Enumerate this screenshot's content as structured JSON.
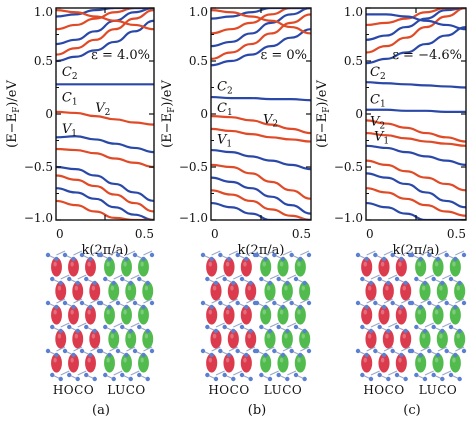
{
  "chart_data": [
    {
      "type": "line",
      "panel": "(a)",
      "xlabel": "k(2π/a)",
      "ylabel": "(E−E_F)/eV",
      "xlim": [
        0,
        0.5
      ],
      "ylim": [
        -1.0,
        1.0
      ],
      "xticks": [
        "0",
        "0.5"
      ],
      "yticks": [
        "1.0",
        "0.5",
        "0",
        "−0.5",
        "−1.0"
      ],
      "strain_label": "ε = 4.0%",
      "band_labels": [
        {
          "text": "C",
          "sub": "2",
          "x": 0.03,
          "y": 0.36
        },
        {
          "text": "C",
          "sub": "1",
          "x": 0.03,
          "y": 0.12
        },
        {
          "text": "V",
          "sub": "2",
          "x": 0.2,
          "y": 0.02
        },
        {
          "text": "V",
          "sub": "1",
          "x": 0.03,
          "y": -0.18
        }
      ],
      "series": [
        {
          "color": "#2a48a8",
          "x": [
            0,
            0.1,
            0.2,
            0.3,
            0.4,
            0.5
          ],
          "y": [
            0.28,
            0.28,
            0.28,
            0.28,
            0.28,
            0.28
          ]
        },
        {
          "color": "#e04a26",
          "x": [
            0,
            0.1,
            0.2,
            0.3,
            0.4,
            0.5
          ],
          "y": [
            0.02,
            0.01,
            -0.02,
            -0.05,
            -0.08,
            -0.1
          ]
        },
        {
          "color": "#2a48a8",
          "x": [
            0,
            0.1,
            0.2,
            0.3,
            0.4,
            0.5
          ],
          "y": [
            -0.22,
            -0.21,
            -0.24,
            -0.28,
            -0.32,
            -0.36
          ]
        },
        {
          "color": "#e04a26",
          "x": [
            0,
            0.1,
            0.2,
            0.3,
            0.4,
            0.5
          ],
          "y": [
            -0.33,
            -0.34,
            -0.37,
            -0.42,
            -0.46,
            -0.5
          ]
        },
        {
          "color": "#2a48a8",
          "x": [
            0,
            0.1,
            0.2,
            0.3,
            0.4,
            0.5
          ],
          "y": [
            -0.5,
            -0.52,
            -0.58,
            -0.66,
            -0.74,
            -0.82
          ]
        },
        {
          "color": "#e04a26",
          "x": [
            0,
            0.1,
            0.2,
            0.3,
            0.4,
            0.5
          ],
          "y": [
            -0.58,
            -0.62,
            -0.68,
            -0.76,
            -0.84,
            -0.92
          ]
        },
        {
          "color": "#2a48a8",
          "x": [
            0,
            0.1,
            0.2,
            0.3,
            0.4,
            0.5
          ],
          "y": [
            -0.7,
            -0.74,
            -0.8,
            -0.88,
            -0.95,
            -1.0
          ]
        },
        {
          "color": "#e04a26",
          "x": [
            0,
            0.1,
            0.2,
            0.3,
            0.4,
            0.5
          ],
          "y": [
            -0.82,
            -0.86,
            -0.92,
            -0.98,
            -1.0,
            -1.0
          ]
        },
        {
          "color": "#2a48a8",
          "x": [
            0,
            0.1,
            0.2,
            0.3,
            0.4,
            0.5
          ],
          "y": [
            0.5,
            0.54,
            0.6,
            0.68,
            0.78,
            0.88
          ]
        },
        {
          "color": "#e04a26",
          "x": [
            0,
            0.1,
            0.2,
            0.3,
            0.4,
            0.5
          ],
          "y": [
            0.56,
            0.62,
            0.7,
            0.8,
            0.9,
            0.98
          ]
        },
        {
          "color": "#2a48a8",
          "x": [
            0,
            0.1,
            0.2,
            0.3,
            0.4,
            0.5
          ],
          "y": [
            0.66,
            0.7,
            0.78,
            0.88,
            0.96,
            1.0
          ]
        },
        {
          "color": "#e04a26",
          "x": [
            0,
            0.1,
            0.2,
            0.3,
            0.4,
            0.5
          ],
          "y": [
            0.8,
            0.84,
            0.9,
            0.96,
            1.0,
            1.0
          ]
        },
        {
          "color": "#2a48a8",
          "x": [
            0,
            0.1,
            0.2,
            0.3,
            0.4,
            0.5
          ],
          "y": [
            0.92,
            0.94,
            0.98,
            1.0,
            1.0,
            1.0
          ]
        },
        {
          "color": "#e04a26",
          "x": [
            0,
            0.1,
            0.2,
            0.3,
            0.4,
            0.5
          ],
          "y": [
            0.98,
            0.96,
            0.92,
            0.88,
            0.84,
            0.8
          ]
        }
      ],
      "orbital_labels": [
        "HOCO",
        "LUCO"
      ],
      "caption": "(a)"
    },
    {
      "type": "line",
      "panel": "(b)",
      "xlabel": "k(2π/a)",
      "ylabel": "(E−E_F)/eV",
      "xlim": [
        0,
        0.5
      ],
      "ylim": [
        -1.0,
        1.0
      ],
      "xticks": [
        "0",
        "0.5"
      ],
      "yticks": [
        "1.0",
        "0.5",
        "0",
        "−0.5",
        "−1.0"
      ],
      "strain_label": "ε = 0%",
      "band_labels": [
        {
          "text": "C",
          "sub": "2",
          "x": 0.03,
          "y": 0.22
        },
        {
          "text": "C",
          "sub": "1",
          "x": 0.03,
          "y": 0.02
        },
        {
          "text": "V",
          "sub": "2",
          "x": 0.26,
          "y": -0.09
        },
        {
          "text": "V",
          "sub": "1",
          "x": 0.03,
          "y": -0.28
        }
      ],
      "series": [
        {
          "color": "#2a48a8",
          "x": [
            0,
            0.1,
            0.2,
            0.3,
            0.4,
            0.5
          ],
          "y": [
            0.16,
            0.15,
            0.15,
            0.14,
            0.14,
            0.13
          ]
        },
        {
          "color": "#e04a26",
          "x": [
            0,
            0.1,
            0.2,
            0.3,
            0.4,
            0.5
          ],
          "y": [
            -0.02,
            -0.03,
            -0.06,
            -0.1,
            -0.14,
            -0.18
          ]
        },
        {
          "color": "#e04a26",
          "x": [
            0,
            0.1,
            0.2,
            0.3,
            0.4,
            0.5
          ],
          "y": [
            -0.14,
            -0.16,
            -0.19,
            -0.22,
            -0.24,
            -0.26
          ]
        },
        {
          "color": "#2a48a8",
          "x": [
            0,
            0.1,
            0.2,
            0.3,
            0.4,
            0.5
          ],
          "y": [
            -0.34,
            -0.36,
            -0.4,
            -0.44,
            -0.48,
            -0.52
          ]
        },
        {
          "color": "#e04a26",
          "x": [
            0,
            0.1,
            0.2,
            0.3,
            0.4,
            0.5
          ],
          "y": [
            -0.48,
            -0.5,
            -0.56,
            -0.64,
            -0.72,
            -0.8
          ]
        },
        {
          "color": "#2a48a8",
          "x": [
            0,
            0.1,
            0.2,
            0.3,
            0.4,
            0.5
          ],
          "y": [
            -0.6,
            -0.64,
            -0.7,
            -0.78,
            -0.86,
            -0.94
          ]
        },
        {
          "color": "#e04a26",
          "x": [
            0,
            0.1,
            0.2,
            0.3,
            0.4,
            0.5
          ],
          "y": [
            -0.72,
            -0.76,
            -0.82,
            -0.9,
            -0.96,
            -1.0
          ]
        },
        {
          "color": "#2a48a8",
          "x": [
            0,
            0.1,
            0.2,
            0.3,
            0.4,
            0.5
          ],
          "y": [
            -0.84,
            -0.88,
            -0.94,
            -1.0,
            -1.0,
            -1.0
          ]
        },
        {
          "color": "#2a48a8",
          "x": [
            0,
            0.1,
            0.2,
            0.3,
            0.4,
            0.5
          ],
          "y": [
            0.46,
            0.5,
            0.56,
            0.64,
            0.72,
            0.8
          ]
        },
        {
          "color": "#e04a26",
          "x": [
            0,
            0.1,
            0.2,
            0.3,
            0.4,
            0.5
          ],
          "y": [
            0.52,
            0.58,
            0.66,
            0.76,
            0.86,
            0.94
          ]
        },
        {
          "color": "#2a48a8",
          "x": [
            0,
            0.1,
            0.2,
            0.3,
            0.4,
            0.5
          ],
          "y": [
            0.64,
            0.68,
            0.76,
            0.86,
            0.94,
            1.0
          ]
        },
        {
          "color": "#e04a26",
          "x": [
            0,
            0.1,
            0.2,
            0.3,
            0.4,
            0.5
          ],
          "y": [
            0.76,
            0.8,
            0.86,
            0.94,
            1.0,
            1.0
          ]
        },
        {
          "color": "#2a48a8",
          "x": [
            0,
            0.1,
            0.2,
            0.3,
            0.4,
            0.5
          ],
          "y": [
            0.9,
            0.92,
            0.96,
            1.0,
            1.0,
            1.0
          ]
        },
        {
          "color": "#e04a26",
          "x": [
            0,
            0.1,
            0.2,
            0.3,
            0.4,
            0.5
          ],
          "y": [
            0.98,
            0.96,
            0.92,
            0.88,
            0.82,
            0.76
          ]
        }
      ],
      "orbital_labels": [
        "HOCO",
        "LUCO"
      ],
      "caption": "(b)"
    },
    {
      "type": "line",
      "panel": "(c)",
      "xlabel": "k(2π/a)",
      "ylabel": "(E−E_F)/eV",
      "xlim": [
        0,
        0.5
      ],
      "ylim": [
        -1.0,
        1.0
      ],
      "xticks": [
        "0",
        "0.5"
      ],
      "yticks": [
        "1.0",
        "0.5",
        "0",
        "−0.5",
        "−1.0"
      ],
      "strain_label": "ε = −4.6%",
      "band_labels": [
        {
          "text": "C",
          "sub": "2",
          "x": 0.02,
          "y": 0.36
        },
        {
          "text": "C",
          "sub": "1",
          "x": 0.02,
          "y": 0.1
        },
        {
          "text": "V",
          "sub": "2",
          "x": 0.02,
          "y": -0.11
        },
        {
          "text": "V",
          "sub": "1",
          "x": 0.04,
          "y": -0.25
        }
      ],
      "series": [
        {
          "color": "#2a48a8",
          "x": [
            0,
            0.1,
            0.2,
            0.3,
            0.4,
            0.5
          ],
          "y": [
            0.3,
            0.29,
            0.28,
            0.27,
            0.26,
            0.25
          ]
        },
        {
          "color": "#2a48a8",
          "x": [
            0,
            0.1,
            0.2,
            0.3,
            0.4,
            0.5
          ],
          "y": [
            0.04,
            0.04,
            0.03,
            0.03,
            0.02,
            0.02
          ]
        },
        {
          "color": "#e04a26",
          "x": [
            0,
            0.1,
            0.2,
            0.3,
            0.4,
            0.5
          ],
          "y": [
            -0.06,
            -0.09,
            -0.13,
            -0.18,
            -0.22,
            -0.26
          ]
        },
        {
          "color": "#e04a26",
          "x": [
            0,
            0.1,
            0.2,
            0.3,
            0.4,
            0.5
          ],
          "y": [
            -0.18,
            -0.2,
            -0.23,
            -0.26,
            -0.28,
            -0.3
          ]
        },
        {
          "color": "#2a48a8",
          "x": [
            0,
            0.1,
            0.2,
            0.3,
            0.4,
            0.5
          ],
          "y": [
            -0.3,
            -0.32,
            -0.36,
            -0.4,
            -0.44,
            -0.48
          ]
        },
        {
          "color": "#e04a26",
          "x": [
            0,
            0.1,
            0.2,
            0.3,
            0.4,
            0.5
          ],
          "y": [
            -0.44,
            -0.48,
            -0.54,
            -0.6,
            -0.66,
            -0.72
          ]
        },
        {
          "color": "#2a48a8",
          "x": [
            0,
            0.1,
            0.2,
            0.3,
            0.4,
            0.5
          ],
          "y": [
            -0.56,
            -0.6,
            -0.66,
            -0.74,
            -0.82,
            -0.88
          ]
        },
        {
          "color": "#e04a26",
          "x": [
            0,
            0.1,
            0.2,
            0.3,
            0.4,
            0.5
          ],
          "y": [
            -0.7,
            -0.74,
            -0.8,
            -0.86,
            -0.92,
            -0.96
          ]
        },
        {
          "color": "#2a48a8",
          "x": [
            0,
            0.1,
            0.2,
            0.3,
            0.4,
            0.5
          ],
          "y": [
            -0.84,
            -0.88,
            -0.94,
            -1.0,
            -1.0,
            -1.0
          ]
        },
        {
          "color": "#2a48a8",
          "x": [
            0,
            0.1,
            0.2,
            0.3,
            0.4,
            0.5
          ],
          "y": [
            0.48,
            0.52,
            0.58,
            0.66,
            0.74,
            0.82
          ]
        },
        {
          "color": "#e04a26",
          "x": [
            0,
            0.1,
            0.2,
            0.3,
            0.4,
            0.5
          ],
          "y": [
            0.58,
            0.64,
            0.72,
            0.82,
            0.92,
            1.0
          ]
        },
        {
          "color": "#2a48a8",
          "x": [
            0,
            0.1,
            0.2,
            0.3,
            0.4,
            0.5
          ],
          "y": [
            0.7,
            0.74,
            0.82,
            0.9,
            0.98,
            1.0
          ]
        },
        {
          "color": "#e04a26",
          "x": [
            0,
            0.1,
            0.2,
            0.3,
            0.4,
            0.5
          ],
          "y": [
            0.84,
            0.86,
            0.9,
            0.96,
            1.0,
            1.0
          ]
        },
        {
          "color": "#2a48a8",
          "x": [
            0,
            0.1,
            0.2,
            0.3,
            0.4,
            0.5
          ],
          "y": [
            0.94,
            0.94,
            0.92,
            0.88,
            0.84,
            0.8
          ]
        }
      ],
      "orbital_labels": [
        "HOCO",
        "LUCO"
      ],
      "caption": "(c)"
    }
  ],
  "colors": {
    "blue_band": "#2a48a8",
    "red_band": "#e04a26",
    "hoco_lobe": "#d8263a",
    "luco_lobe": "#3fb43a",
    "atom": "#5b7fd1",
    "bond": "#9aa6c8"
  }
}
